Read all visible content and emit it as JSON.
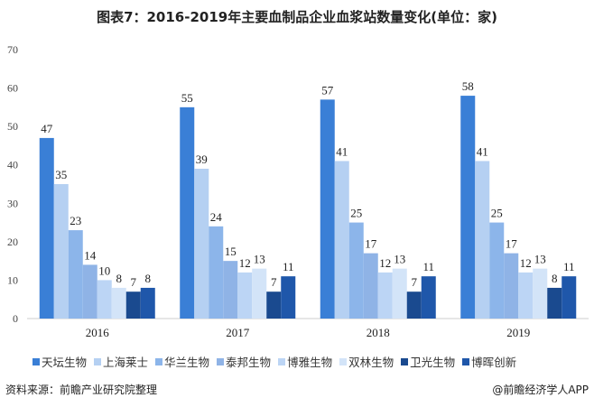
{
  "chart_data": {
    "type": "bar",
    "title": "图表7：2016-2019年主要血制品企业血浆站数量变化(单位：家)",
    "categories": [
      "2016",
      "2017",
      "2018",
      "2019"
    ],
    "ylim": [
      0,
      70
    ],
    "yticks": [
      "0",
      "10",
      "20",
      "30",
      "40",
      "50",
      "60",
      "70"
    ],
    "legend_position": "bottom",
    "series": [
      {
        "name": "天坛生物",
        "color": "#3a7fd6",
        "values": [
          47,
          55,
          57,
          58
        ]
      },
      {
        "name": "上海莱士",
        "color": "#b5d0f2",
        "values": [
          35,
          39,
          41,
          41
        ]
      },
      {
        "name": "华兰生物",
        "color": "#8cb5ea",
        "values": [
          23,
          24,
          25,
          25
        ]
      },
      {
        "name": "泰邦生物",
        "color": "#8fb3e6",
        "values": [
          14,
          15,
          17,
          17
        ]
      },
      {
        "name": "博雅生物",
        "color": "#bcd5f5",
        "values": [
          10,
          12,
          12,
          12
        ]
      },
      {
        "name": "双林生物",
        "color": "#d3e4f8",
        "values": [
          8,
          13,
          13,
          13
        ]
      },
      {
        "name": "卫光生物",
        "color": "#1a4a8f",
        "values": [
          7,
          7,
          7,
          8
        ]
      },
      {
        "name": "博晖创新",
        "color": "#1f57aa",
        "values": [
          8,
          11,
          11,
          11
        ]
      }
    ]
  },
  "footer": {
    "source": "资料来源：前瞻产业研究院整理",
    "credit": "@前瞻经济学人APP"
  }
}
